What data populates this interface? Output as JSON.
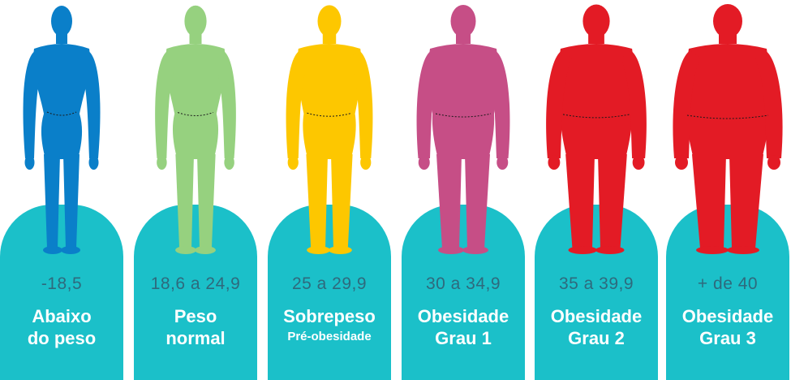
{
  "categories": [
    {
      "range": "-18,5",
      "line1": "Abaixo",
      "line2": "do peso",
      "color": "#0a7fc9",
      "build": 0.0
    },
    {
      "range": "18,6 a 24,9",
      "line1": "Peso",
      "line2": "normal",
      "color": "#96d17f",
      "build": 0.12
    },
    {
      "range": "25 a 29,9",
      "line1": "Sobrepeso",
      "line2": "Pré-obesidade",
      "line2_small": true,
      "color": "#fdc700",
      "build": 0.3
    },
    {
      "range": "30 a 34,9",
      "line1": "Obesidade",
      "line2": "Grau 1",
      "color": "#c64e86",
      "build": 0.5
    },
    {
      "range": "35 a 39,9",
      "line1": "Obesidade",
      "line2": "Grau 2",
      "color": "#e31b25",
      "build": 0.72
    },
    {
      "range": "+ de 40",
      "line1": "Obesidade",
      "line2": "Grau 3",
      "color": "#e31b25",
      "build": 1.0
    }
  ],
  "pedestal_color": "#1bc0c9",
  "range_color": "#2e6a7d"
}
